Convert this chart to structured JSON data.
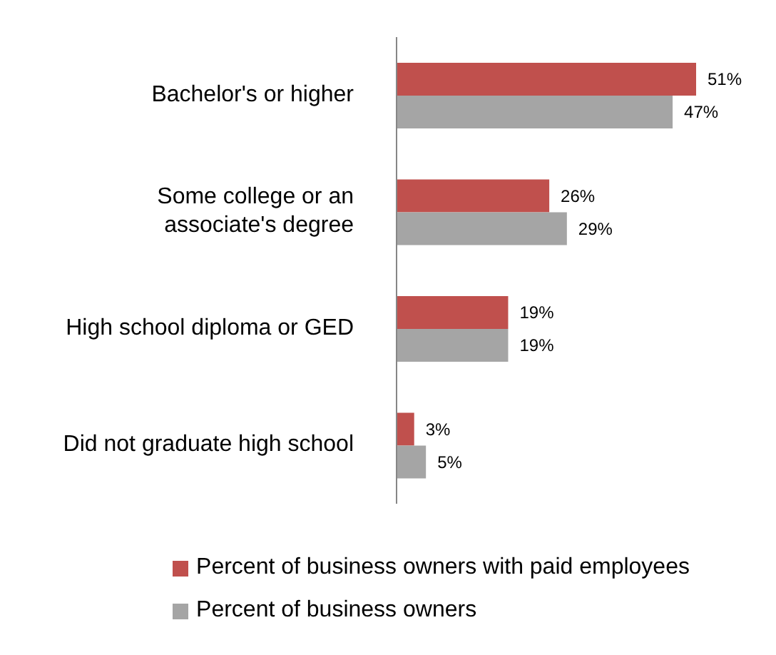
{
  "chart_data": {
    "type": "bar",
    "orientation": "horizontal",
    "categories": [
      "Bachelor's or higher",
      "Some college or an associate's degree",
      "High school diploma or GED",
      "Did not graduate high school"
    ],
    "series": [
      {
        "name": "Percent of business owners with paid employees",
        "color": "#c0504d",
        "values": [
          51,
          26,
          19,
          3
        ],
        "value_labels": [
          "51%",
          "26%",
          "19%",
          "3%"
        ]
      },
      {
        "name": "Percent of business owners",
        "color": "#a5a5a5",
        "values": [
          47,
          29,
          19,
          5
        ],
        "value_labels": [
          "47%",
          "29%",
          "19%",
          "5%"
        ]
      }
    ],
    "legend": "bottom"
  }
}
